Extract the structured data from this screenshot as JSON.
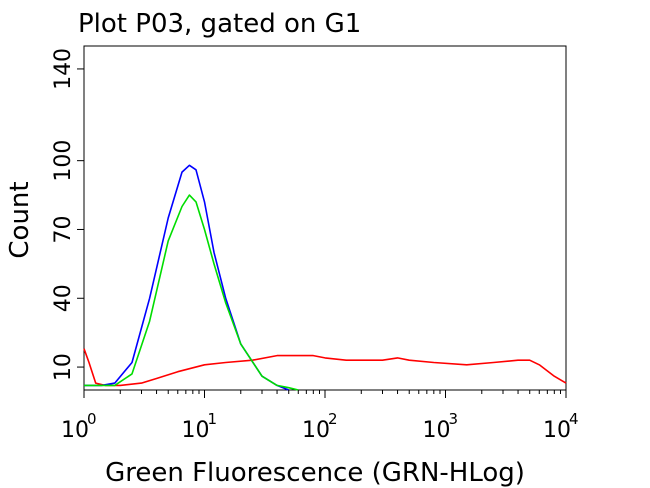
{
  "chart_data": {
    "type": "line",
    "title": "Plot P03, gated on G1",
    "xlabel": "Green Fluorescence (GRN-HLog)",
    "ylabel": "Count",
    "x_scale": "log",
    "xlim": [
      1,
      10000
    ],
    "ylim": [
      0,
      150
    ],
    "grid": false,
    "x_ticks": [
      {
        "base": "10",
        "exp": "0",
        "value": 1
      },
      {
        "base": "10",
        "exp": "1",
        "value": 10
      },
      {
        "base": "10",
        "exp": "2",
        "value": 100
      },
      {
        "base": "10",
        "exp": "3",
        "value": 1000
      },
      {
        "base": "10",
        "exp": "4",
        "value": 10000
      }
    ],
    "y_ticks": [
      {
        "label": "10",
        "value": 10
      },
      {
        "label": "40",
        "value": 40
      },
      {
        "label": "70",
        "value": 70
      },
      {
        "label": "100",
        "value": 100
      },
      {
        "label": "140",
        "value": 140
      }
    ],
    "series": [
      {
        "color": "#ff0000",
        "x": [
          1,
          1.1,
          1.25,
          1.5,
          2,
          3,
          4,
          6,
          10,
          15,
          25,
          40,
          60,
          80,
          100,
          150,
          300,
          400,
          500,
          800,
          1500,
          2500,
          4000,
          5000,
          6000,
          8000,
          10000
        ],
        "y": [
          18,
          12,
          3,
          2,
          2,
          3,
          5,
          8,
          11,
          12,
          13,
          15,
          15,
          15,
          14,
          13,
          13,
          14,
          13,
          12,
          11,
          12,
          13,
          13,
          11,
          6,
          3
        ]
      },
      {
        "color": "#0000ff",
        "x": [
          1,
          1.4,
          1.8,
          2.5,
          3.5,
          5,
          6.5,
          7.5,
          8.5,
          10,
          12,
          15,
          20,
          30,
          40,
          50
        ],
        "y": [
          2,
          2,
          3,
          12,
          40,
          75,
          95,
          98,
          96,
          82,
          60,
          40,
          20,
          6,
          2,
          0
        ]
      },
      {
        "color": "#00dd00",
        "x": [
          1,
          1.4,
          1.8,
          2.5,
          3.5,
          5,
          6.5,
          7.5,
          8.5,
          10,
          12,
          15,
          20,
          30,
          40,
          50,
          60
        ],
        "y": [
          2,
          2,
          2,
          7,
          30,
          65,
          80,
          85,
          82,
          70,
          55,
          38,
          20,
          6,
          2,
          1,
          0
        ]
      }
    ]
  }
}
